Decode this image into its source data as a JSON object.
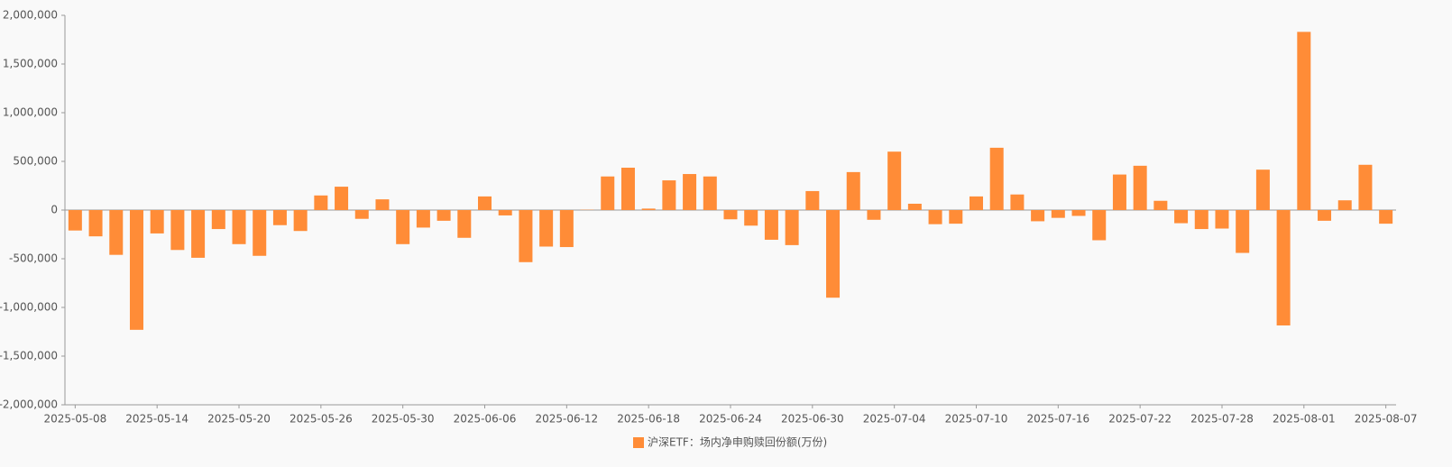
{
  "chart_data": {
    "type": "bar",
    "legend_label": "沪深ETF：场内净申购赎回份额(万份)",
    "color": "#ff8c37",
    "categories": [
      "2025-05-08",
      null,
      null,
      null,
      "2025-05-14",
      null,
      null,
      null,
      "2025-05-20",
      null,
      null,
      null,
      "2025-05-26",
      null,
      null,
      null,
      "2025-05-30",
      null,
      null,
      null,
      "2025-06-06",
      null,
      null,
      null,
      "2025-06-12",
      null,
      null,
      null,
      "2025-06-18",
      null,
      null,
      null,
      "2025-06-24",
      null,
      null,
      null,
      "2025-06-30",
      null,
      null,
      null,
      "2025-07-04",
      null,
      null,
      null,
      "2025-07-10",
      null,
      null,
      null,
      "2025-07-16",
      null,
      null,
      null,
      "2025-07-22",
      null,
      null,
      null,
      "2025-07-28",
      null,
      null,
      null,
      "2025-08-01",
      null,
      null,
      null,
      "2025-08-07"
    ],
    "values": [
      -210000,
      -270000,
      -460000,
      -1230000,
      -240000,
      -410000,
      -490000,
      -195000,
      -350000,
      -470000,
      -155000,
      -215000,
      150000,
      240000,
      -90000,
      110000,
      -350000,
      -180000,
      -110000,
      -285000,
      140000,
      -55000,
      -535000,
      -375000,
      -380000,
      3000,
      345000,
      435000,
      15000,
      305000,
      370000,
      345000,
      -95000,
      -160000,
      -305000,
      -360000,
      195000,
      -900000,
      390000,
      -100000,
      600000,
      65000,
      -145000,
      -140000,
      140000,
      640000,
      160000,
      -115000,
      -80000,
      -60000,
      -310000,
      365000,
      455000,
      95000,
      -135000,
      -195000,
      -190000,
      -440000,
      415000,
      -1185000,
      1830000,
      -110000,
      100000,
      465000,
      -140000
    ],
    "ylim": [
      -2000000,
      2000000
    ],
    "yticks": [
      {
        "value": -2000000,
        "label": "-2,000,000"
      },
      {
        "value": -1500000,
        "label": "-1,500,000"
      },
      {
        "value": -1000000,
        "label": "-1,000,000"
      },
      {
        "value": -500000,
        "label": "-500,000"
      },
      0,
      {
        "value": 500000,
        "label": "500,000"
      },
      {
        "value": 1000000,
        "label": "1,000,000"
      },
      {
        "value": 1500000,
        "label": "1,500,000"
      },
      {
        "value": 2000000,
        "label": "2,000,000"
      }
    ]
  }
}
